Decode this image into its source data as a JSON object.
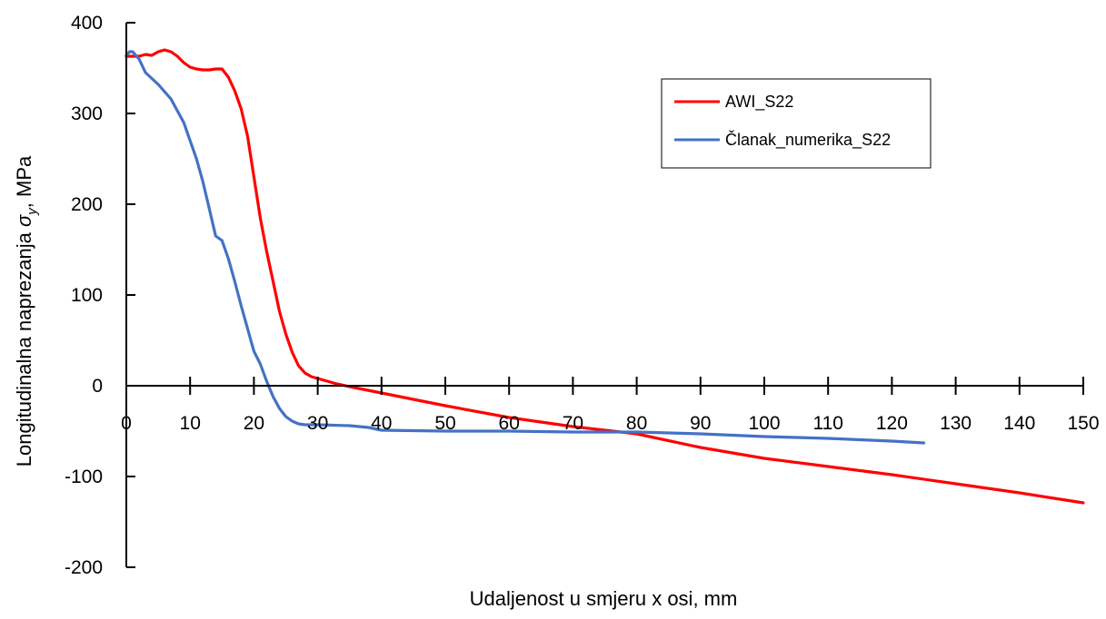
{
  "chart_data": {
    "type": "line",
    "xlabel": "Udaljenost u smjeru x osi, mm",
    "ylabel_main": "Longitudinalna naprezanja ",
    "ylabel_symbol": "σ",
    "ylabel_subscript": "y",
    "ylabel_unit": ", MPa",
    "xlim": [
      0,
      150
    ],
    "ylim": [
      -200,
      400
    ],
    "xticks": [
      0,
      10,
      20,
      30,
      40,
      50,
      60,
      70,
      80,
      90,
      100,
      110,
      120,
      130,
      140,
      150
    ],
    "yticks": [
      400,
      300,
      200,
      100,
      0,
      -100,
      -200
    ],
    "grid": false,
    "legend_position": "top-right",
    "series": [
      {
        "name": "AWI_S22",
        "color": "#ff0000",
        "points": [
          [
            0,
            363
          ],
          [
            2,
            363
          ],
          [
            3,
            365
          ],
          [
            4,
            364
          ],
          [
            5,
            368
          ],
          [
            6,
            370
          ],
          [
            7,
            368
          ],
          [
            8,
            363
          ],
          [
            9,
            356
          ],
          [
            10,
            351
          ],
          [
            11,
            349
          ],
          [
            12,
            348
          ],
          [
            13,
            348
          ],
          [
            14,
            349
          ],
          [
            15,
            349
          ],
          [
            16,
            340
          ],
          [
            17,
            325
          ],
          [
            18,
            305
          ],
          [
            19,
            275
          ],
          [
            20,
            230
          ],
          [
            21,
            185
          ],
          [
            22,
            148
          ],
          [
            23,
            115
          ],
          [
            24,
            82
          ],
          [
            25,
            57
          ],
          [
            26,
            37
          ],
          [
            27,
            22
          ],
          [
            28,
            14
          ],
          [
            29,
            10
          ],
          [
            30,
            8
          ],
          [
            31,
            6
          ],
          [
            33,
            2
          ],
          [
            35,
            -1
          ],
          [
            40,
            -8
          ],
          [
            50,
            -22
          ],
          [
            60,
            -35
          ],
          [
            70,
            -45
          ],
          [
            80,
            -53
          ],
          [
            90,
            -68
          ],
          [
            100,
            -80
          ],
          [
            110,
            -89
          ],
          [
            120,
            -98
          ],
          [
            130,
            -108
          ],
          [
            140,
            -118
          ],
          [
            150,
            -129
          ]
        ]
      },
      {
        "name": "Članak_numerika_S22",
        "color": "#4472c4",
        "points": [
          [
            0,
            364
          ],
          [
            0.5,
            368
          ],
          [
            1,
            368
          ],
          [
            2,
            360
          ],
          [
            3,
            345
          ],
          [
            5,
            332
          ],
          [
            7,
            316
          ],
          [
            9,
            290
          ],
          [
            10,
            270
          ],
          [
            11,
            250
          ],
          [
            12,
            225
          ],
          [
            13,
            195
          ],
          [
            14,
            165
          ],
          [
            15,
            160
          ],
          [
            16,
            140
          ],
          [
            17,
            115
          ],
          [
            18,
            88
          ],
          [
            19,
            63
          ],
          [
            20,
            38
          ],
          [
            21,
            24
          ],
          [
            22,
            5
          ],
          [
            23,
            -12
          ],
          [
            24,
            -25
          ],
          [
            25,
            -34
          ],
          [
            26,
            -39
          ],
          [
            27,
            -42
          ],
          [
            28,
            -43
          ],
          [
            30,
            -43
          ],
          [
            35,
            -44
          ],
          [
            38,
            -46
          ],
          [
            40,
            -49
          ],
          [
            50,
            -50
          ],
          [
            60,
            -50
          ],
          [
            70,
            -51
          ],
          [
            80,
            -51
          ],
          [
            90,
            -53
          ],
          [
            100,
            -56
          ],
          [
            110,
            -58
          ],
          [
            120,
            -61
          ],
          [
            125,
            -63
          ]
        ]
      }
    ]
  }
}
